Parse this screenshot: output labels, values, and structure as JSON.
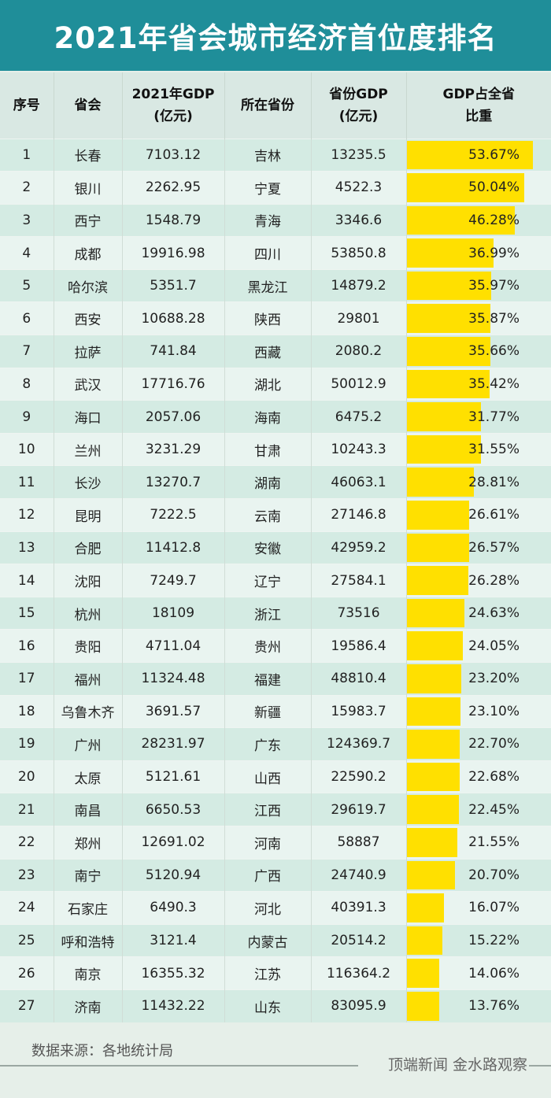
{
  "title": "2021年省会城市经济首位度排名",
  "headers": {
    "idx": "序号",
    "city": "省会",
    "gdp_line1": "2021年GDP",
    "gdp_line2": "(亿元)",
    "prov": "所在省份",
    "pgdp_line1": "省份GDP",
    "pgdp_line2": "(亿元)",
    "share_line1": "GDP占全省",
    "share_line2": "比重"
  },
  "chart_data": {
    "type": "table",
    "columns": [
      "序号",
      "省会",
      "2021年GDP(亿元)",
      "所在省份",
      "省份GDP(亿元)",
      "GDP占全省比重"
    ],
    "share_bar_max": 53.67,
    "rows": [
      {
        "idx": "1",
        "city": "长春",
        "gdp": "7103.12",
        "prov": "吉林",
        "pgdp": "13235.5",
        "share": 53.67,
        "share_text": "53.67%"
      },
      {
        "idx": "2",
        "city": "银川",
        "gdp": "2262.95",
        "prov": "宁夏",
        "pgdp": "4522.3",
        "share": 50.04,
        "share_text": "50.04%"
      },
      {
        "idx": "3",
        "city": "西宁",
        "gdp": "1548.79",
        "prov": "青海",
        "pgdp": "3346.6",
        "share": 46.28,
        "share_text": "46.28%"
      },
      {
        "idx": "4",
        "city": "成都",
        "gdp": "19916.98",
        "prov": "四川",
        "pgdp": "53850.8",
        "share": 36.99,
        "share_text": "36.99%"
      },
      {
        "idx": "5",
        "city": "哈尔滨",
        "gdp": "5351.7",
        "prov": "黑龙江",
        "pgdp": "14879.2",
        "share": 35.97,
        "share_text": "35.97%"
      },
      {
        "idx": "6",
        "city": "西安",
        "gdp": "10688.28",
        "prov": "陕西",
        "pgdp": "29801",
        "share": 35.87,
        "share_text": "35.87%"
      },
      {
        "idx": "7",
        "city": "拉萨",
        "gdp": "741.84",
        "prov": "西藏",
        "pgdp": "2080.2",
        "share": 35.66,
        "share_text": "35.66%"
      },
      {
        "idx": "8",
        "city": "武汉",
        "gdp": "17716.76",
        "prov": "湖北",
        "pgdp": "50012.9",
        "share": 35.42,
        "share_text": "35.42%"
      },
      {
        "idx": "9",
        "city": "海口",
        "gdp": "2057.06",
        "prov": "海南",
        "pgdp": "6475.2",
        "share": 31.77,
        "share_text": "31.77%"
      },
      {
        "idx": "10",
        "city": "兰州",
        "gdp": "3231.29",
        "prov": "甘肃",
        "pgdp": "10243.3",
        "share": 31.55,
        "share_text": "31.55%"
      },
      {
        "idx": "11",
        "city": "长沙",
        "gdp": "13270.7",
        "prov": "湖南",
        "pgdp": "46063.1",
        "share": 28.81,
        "share_text": "28.81%"
      },
      {
        "idx": "12",
        "city": "昆明",
        "gdp": "7222.5",
        "prov": "云南",
        "pgdp": "27146.8",
        "share": 26.61,
        "share_text": "26.61%"
      },
      {
        "idx": "13",
        "city": "合肥",
        "gdp": "11412.8",
        "prov": "安徽",
        "pgdp": "42959.2",
        "share": 26.57,
        "share_text": "26.57%"
      },
      {
        "idx": "14",
        "city": "沈阳",
        "gdp": "7249.7",
        "prov": "辽宁",
        "pgdp": "27584.1",
        "share": 26.28,
        "share_text": "26.28%"
      },
      {
        "idx": "15",
        "city": "杭州",
        "gdp": "18109",
        "prov": "浙江",
        "pgdp": "73516",
        "share": 24.63,
        "share_text": "24.63%"
      },
      {
        "idx": "16",
        "city": "贵阳",
        "gdp": "4711.04",
        "prov": "贵州",
        "pgdp": "19586.4",
        "share": 24.05,
        "share_text": "24.05%"
      },
      {
        "idx": "17",
        "city": "福州",
        "gdp": "11324.48",
        "prov": "福建",
        "pgdp": "48810.4",
        "share": 23.2,
        "share_text": "23.20%"
      },
      {
        "idx": "18",
        "city": "乌鲁木齐",
        "gdp": "3691.57",
        "prov": "新疆",
        "pgdp": "15983.7",
        "share": 23.1,
        "share_text": "23.10%"
      },
      {
        "idx": "19",
        "city": "广州",
        "gdp": "28231.97",
        "prov": "广东",
        "pgdp": "124369.7",
        "share": 22.7,
        "share_text": "22.70%"
      },
      {
        "idx": "20",
        "city": "太原",
        "gdp": "5121.61",
        "prov": "山西",
        "pgdp": "22590.2",
        "share": 22.68,
        "share_text": "22.68%"
      },
      {
        "idx": "21",
        "city": "南昌",
        "gdp": "6650.53",
        "prov": "江西",
        "pgdp": "29619.7",
        "share": 22.45,
        "share_text": "22.45%"
      },
      {
        "idx": "22",
        "city": "郑州",
        "gdp": "12691.02",
        "prov": "河南",
        "pgdp": "58887",
        "share": 21.55,
        "share_text": "21.55%"
      },
      {
        "idx": "23",
        "city": "南宁",
        "gdp": "5120.94",
        "prov": "广西",
        "pgdp": "24740.9",
        "share": 20.7,
        "share_text": "20.70%"
      },
      {
        "idx": "24",
        "city": "石家庄",
        "gdp": "6490.3",
        "prov": "河北",
        "pgdp": "40391.3",
        "share": 16.07,
        "share_text": "16.07%"
      },
      {
        "idx": "25",
        "city": "呼和浩特",
        "gdp": "3121.4",
        "prov": "内蒙古",
        "pgdp": "20514.2",
        "share": 15.22,
        "share_text": "15.22%"
      },
      {
        "idx": "26",
        "city": "南京",
        "gdp": "16355.32",
        "prov": "江苏",
        "pgdp": "116364.2",
        "share": 14.06,
        "share_text": "14.06%"
      },
      {
        "idx": "27",
        "city": "济南",
        "gdp": "11432.22",
        "prov": "山东",
        "pgdp": "83095.9",
        "share": 13.76,
        "share_text": "13.76%"
      }
    ]
  },
  "footer": {
    "source": "数据来源：各地统计局",
    "brand": "顶端新闻  金水路观察"
  },
  "colors": {
    "title_bg": "#1f8e99",
    "bar": "#ffe000",
    "row_odd": "#d4ebe3",
    "row_even": "#e9f4f0"
  }
}
